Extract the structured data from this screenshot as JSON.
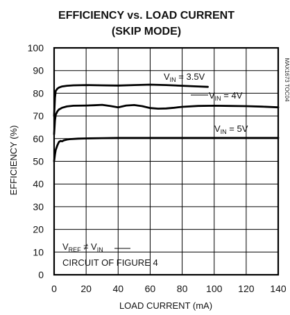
{
  "chart_data": {
    "type": "line",
    "title": "EFFICIENCY vs. LOAD CURRENT",
    "subtitle": "(SKIP MODE)",
    "xlabel": "LOAD CURRENT (mA)",
    "ylabel": "EFFICIENCY (%)",
    "xlim": [
      0,
      140
    ],
    "ylim": [
      0,
      100
    ],
    "x_ticks": [
      "0",
      "20",
      "40",
      "60",
      "80",
      "100",
      "120",
      "140"
    ],
    "y_ticks": [
      "0",
      "10",
      "20",
      "30",
      "40",
      "50",
      "60",
      "70",
      "80",
      "90",
      "100"
    ],
    "grid": true,
    "side_label": "MAX1673 TOC04",
    "annotations": [
      {
        "id": "vref",
        "text": "V",
        "sub": "REF",
        "rest": " ≠ V",
        "sub2": "IN"
      },
      {
        "id": "circuit",
        "text": "CIRCUIT OF FIGURE 4"
      }
    ],
    "series": [
      {
        "name": "VIN = 3.5V",
        "label_main": "V",
        "label_sub": "IN",
        "label_rest": " = 3.5V",
        "x": [
          0,
          0.5,
          1,
          2,
          3,
          5,
          8,
          12,
          20,
          30,
          40,
          50,
          60,
          70,
          80,
          90,
          96
        ],
        "y": [
          70,
          78,
          81,
          82,
          82.5,
          83,
          83.3,
          83.5,
          83.6,
          83.5,
          83.4,
          83.6,
          83.8,
          83.6,
          83.3,
          83.0,
          82.8
        ]
      },
      {
        "name": "VIN = 4V",
        "label_main": "V",
        "label_sub": "IN",
        "label_rest": " = 4V",
        "x": [
          0,
          0.5,
          1,
          2,
          3,
          5,
          8,
          12,
          20,
          25,
          30,
          35,
          40,
          45,
          50,
          55,
          60,
          65,
          70,
          75,
          80,
          90,
          100,
          110,
          120,
          130,
          140
        ],
        "y": [
          62,
          68,
          70.5,
          72,
          72.8,
          73.6,
          74.2,
          74.5,
          74.6,
          74.7,
          74.9,
          74.4,
          73.8,
          74.6,
          74.8,
          74.3,
          73.5,
          73.2,
          73.3,
          73.6,
          74.0,
          74.4,
          74.5,
          74.4,
          74.3,
          74.1,
          73.8
        ]
      },
      {
        "name": "VIN = 5V",
        "label_main": "V",
        "label_sub": "IN",
        "label_rest": " = 5V",
        "x": [
          0,
          0.5,
          1,
          2,
          3,
          4,
          5,
          6,
          8,
          10,
          15,
          20,
          30,
          40,
          60,
          80,
          100,
          120,
          140
        ],
        "y": [
          50,
          53,
          55,
          57,
          58.5,
          59,
          58.8,
          59.2,
          59.6,
          59.8,
          60,
          60.1,
          60.2,
          60.3,
          60.3,
          60.3,
          60.3,
          60.3,
          60.3
        ]
      }
    ]
  }
}
